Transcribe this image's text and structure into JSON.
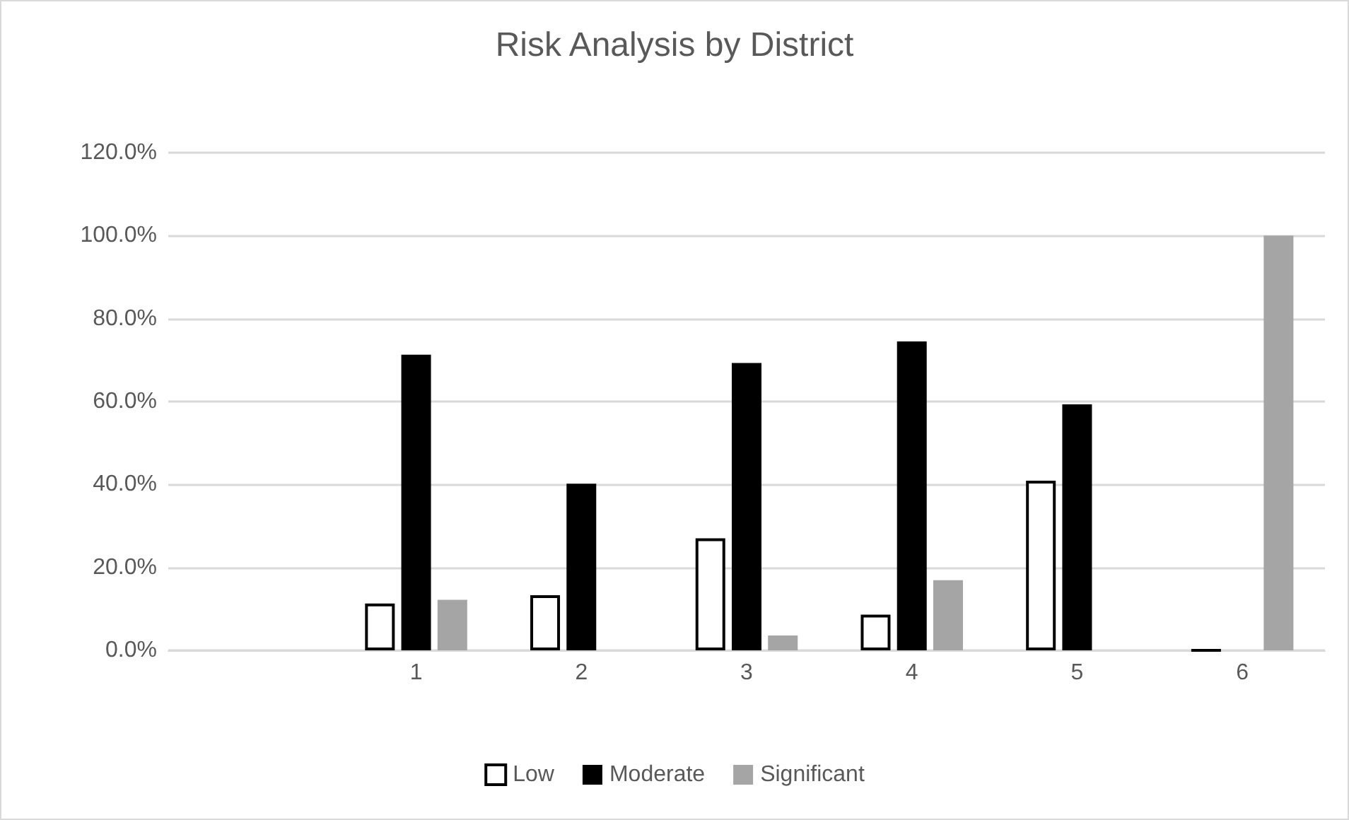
{
  "chart_data": {
    "type": "bar",
    "title": "Risk Analysis by District",
    "categories": [
      null,
      "1",
      "2",
      "3",
      "4",
      "5",
      "6"
    ],
    "series": [
      {
        "name": "Low",
        "color": "#ffffff",
        "values": [
          null,
          11.3,
          13.3,
          27.0,
          8.6,
          40.9,
          0
        ]
      },
      {
        "name": "Moderate",
        "color": "#000000",
        "values": [
          null,
          71.3,
          40.2,
          69.3,
          74.5,
          59.3,
          0
        ]
      },
      {
        "name": "Significant",
        "color": "#a5a5a5",
        "values": [
          null,
          12.2,
          0,
          3.6,
          16.9,
          0,
          100
        ]
      }
    ],
    "ylim": [
      0,
      120
    ],
    "yticks": [
      {
        "value": 0,
        "label": "0.0%"
      },
      {
        "value": 20,
        "label": "20.0%"
      },
      {
        "value": 40,
        "label": "40.0%"
      },
      {
        "value": 60,
        "label": "60.0%"
      },
      {
        "value": 80,
        "label": "80.0%"
      },
      {
        "value": 100,
        "label": "100.0%"
      },
      {
        "value": 120,
        "label": "120.0%"
      }
    ],
    "grid": "y",
    "legend": "bottom"
  }
}
